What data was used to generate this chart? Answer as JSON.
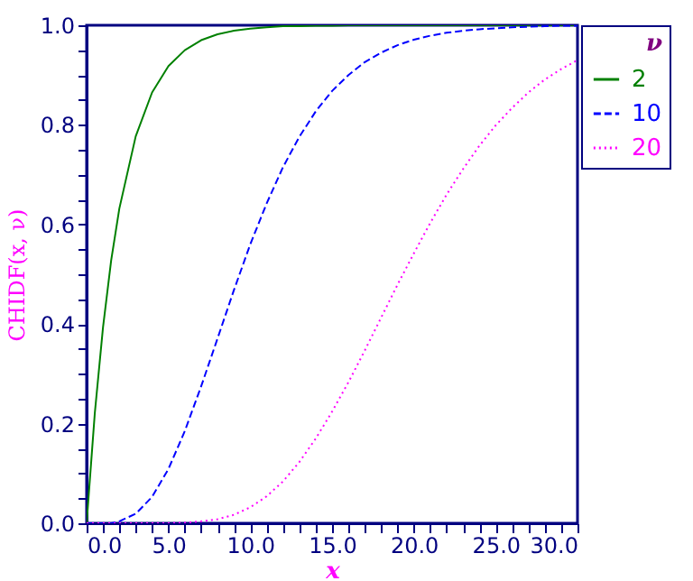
{
  "chart_data": {
    "type": "line",
    "xlabel": "x",
    "ylabel": "CHIDF(x, ν)",
    "legend_title": "ν",
    "legend": "top right",
    "grid": false,
    "x": [
      0,
      0.5,
      1,
      1.5,
      2,
      3,
      4,
      5,
      6,
      7,
      8,
      9,
      10,
      11,
      12,
      13,
      14,
      15,
      16,
      17,
      18,
      19,
      20,
      21,
      22,
      23,
      24,
      25,
      26,
      27,
      28,
      29,
      30
    ],
    "series": [
      {
        "name": "2",
        "color": "#008000",
        "line_style": "solid",
        "values": [
          0,
          0.221,
          0.393,
          0.528,
          0.632,
          0.777,
          0.865,
          0.918,
          0.95,
          0.97,
          0.982,
          0.989,
          0.993,
          0.996,
          0.998,
          0.998,
          0.999,
          0.999,
          1.0,
          1.0,
          1.0,
          1.0,
          1.0,
          1.0,
          1.0,
          1.0,
          1.0,
          1.0,
          1.0,
          1.0,
          1.0,
          1.0,
          1.0
        ]
      },
      {
        "name": "10",
        "color": "#0000ff",
        "line_style": "dashed",
        "values": [
          0,
          0,
          0,
          0,
          0.004,
          0.019,
          0.053,
          0.109,
          0.185,
          0.275,
          0.371,
          0.468,
          0.56,
          0.642,
          0.715,
          0.776,
          0.827,
          0.868,
          0.9,
          0.926,
          0.945,
          0.96,
          0.971,
          0.979,
          0.985,
          0.989,
          0.992,
          0.994,
          0.996,
          0.997,
          0.998,
          0.999,
          0.999
        ]
      },
      {
        "name": "20",
        "color": "#ff00ff",
        "line_style": "dotted",
        "values": [
          0,
          0,
          0,
          0,
          0,
          0,
          0,
          0,
          0.001,
          0.004,
          0.008,
          0.017,
          0.032,
          0.054,
          0.084,
          0.123,
          0.17,
          0.224,
          0.283,
          0.347,
          0.413,
          0.479,
          0.542,
          0.603,
          0.66,
          0.711,
          0.758,
          0.799,
          0.834,
          0.865,
          0.891,
          0.912,
          0.93
        ]
      }
    ],
    "xlim": [
      0,
      30
    ],
    "ylim": [
      0,
      1
    ],
    "xticks": [
      {
        "value": 0,
        "label": "0.0"
      },
      {
        "value": 1,
        "label": null
      },
      {
        "value": 2,
        "label": null
      },
      {
        "value": 3,
        "label": null
      },
      {
        "value": 4,
        "label": null
      },
      {
        "value": 5,
        "label": "5.0"
      },
      {
        "value": 6,
        "label": null
      },
      {
        "value": 7,
        "label": null
      },
      {
        "value": 8,
        "label": null
      },
      {
        "value": 9,
        "label": null
      },
      {
        "value": 10,
        "label": "10.0"
      },
      {
        "value": 11,
        "label": null
      },
      {
        "value": 12,
        "label": null
      },
      {
        "value": 13,
        "label": null
      },
      {
        "value": 14,
        "label": null
      },
      {
        "value": 15,
        "label": "15.0"
      },
      {
        "value": 16,
        "label": null
      },
      {
        "value": 17,
        "label": null
      },
      {
        "value": 18,
        "label": null
      },
      {
        "value": 19,
        "label": null
      },
      {
        "value": 20,
        "label": "20.0"
      },
      {
        "value": 21,
        "label": null
      },
      {
        "value": 22,
        "label": null
      },
      {
        "value": 23,
        "label": null
      },
      {
        "value": 24,
        "label": null
      },
      {
        "value": 25,
        "label": "25.0"
      },
      {
        "value": 26,
        "label": null
      },
      {
        "value": 27,
        "label": null
      },
      {
        "value": 28,
        "label": null
      },
      {
        "value": 29,
        "label": null
      },
      {
        "value": 30,
        "label": "30.0"
      }
    ],
    "yticks": [
      {
        "value": 0,
        "label": "0.0"
      },
      {
        "value": 0.05,
        "label": null
      },
      {
        "value": 0.1,
        "label": null
      },
      {
        "value": 0.15,
        "label": null
      },
      {
        "value": 0.2,
        "label": "0.2"
      },
      {
        "value": 0.25,
        "label": null
      },
      {
        "value": 0.3,
        "label": null
      },
      {
        "value": 0.35,
        "label": null
      },
      {
        "value": 0.4,
        "label": "0.4"
      },
      {
        "value": 0.45,
        "label": null
      },
      {
        "value": 0.5,
        "label": null
      },
      {
        "value": 0.55,
        "label": null
      },
      {
        "value": 0.6,
        "label": "0.6"
      },
      {
        "value": 0.65,
        "label": null
      },
      {
        "value": 0.7,
        "label": null
      },
      {
        "value": 0.75,
        "label": null
      },
      {
        "value": 0.8,
        "label": "0.8"
      },
      {
        "value": 0.85,
        "label": null
      },
      {
        "value": 0.9,
        "label": null
      },
      {
        "value": 0.95,
        "label": null
      },
      {
        "value": 1,
        "label": "1.0"
      }
    ]
  }
}
